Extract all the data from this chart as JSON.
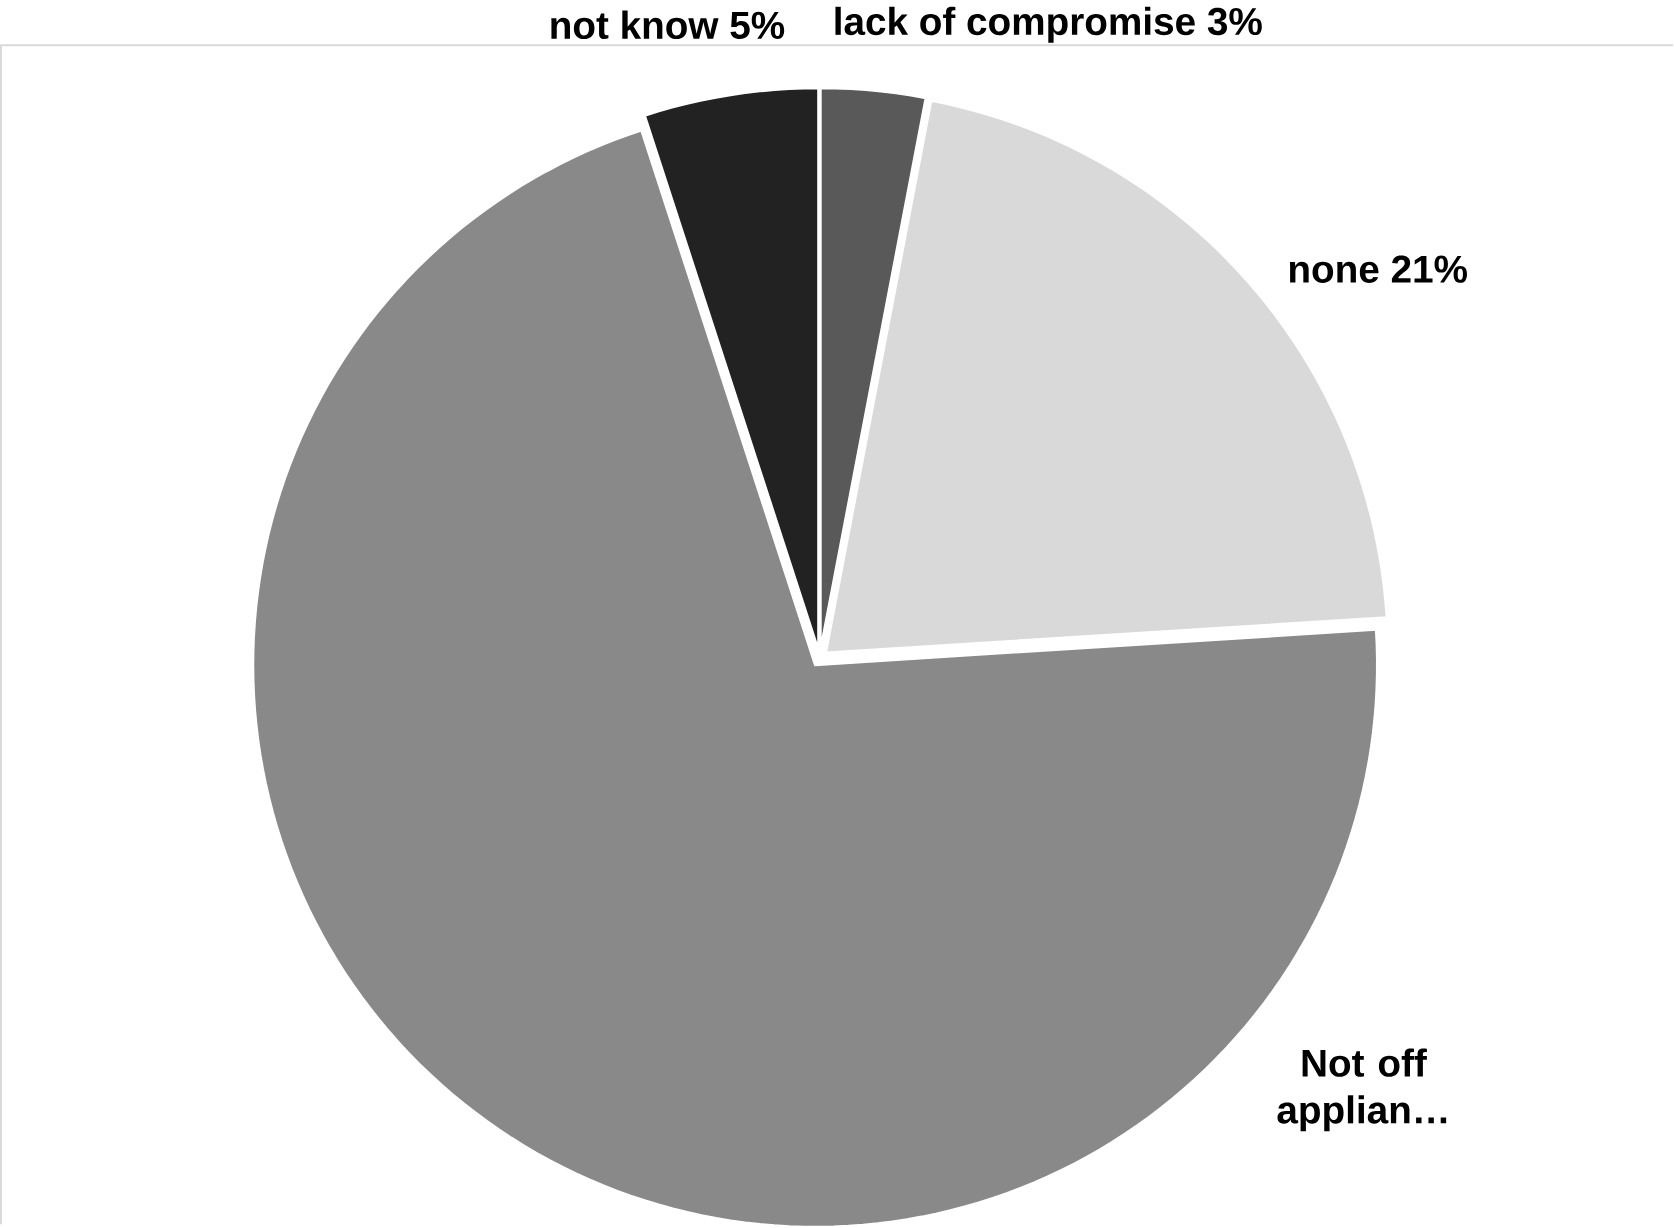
{
  "chart_data": {
    "type": "pie",
    "categories": [
      "lack of compromise",
      "none",
      "Not off applian…",
      "not know"
    ],
    "values": [
      3,
      21,
      71,
      5
    ],
    "value_labels": [
      "3%",
      "21%",
      null,
      "5%"
    ],
    "colors": [
      "#595959",
      "#d9d9d9",
      "#898989",
      "#222222"
    ]
  }
}
